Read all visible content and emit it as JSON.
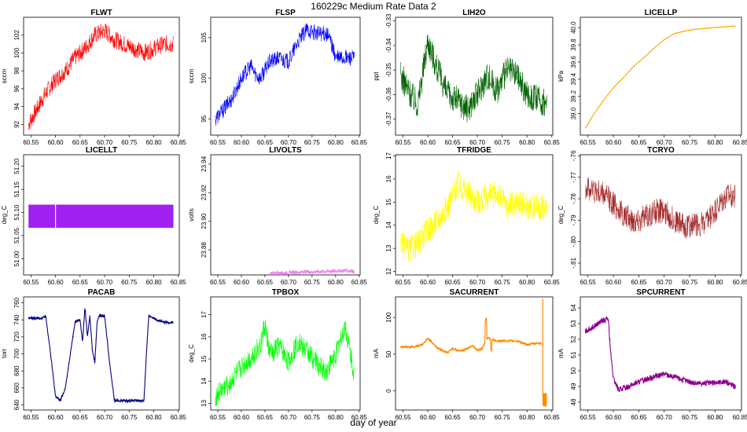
{
  "figure": {
    "title": "160229c   Medium Rate Data 2",
    "xlabel": "day of year"
  },
  "chart_data": [
    {
      "type": "line",
      "title": "FLWT",
      "ylabel": "sccm",
      "color": "#ff0000",
      "xlim": [
        60.535,
        60.852
      ],
      "ylim": [
        90.8,
        104.0
      ],
      "xticks": [
        "60.55",
        "60.60",
        "60.65",
        "60.70",
        "60.75",
        "60.80",
        "60.85"
      ],
      "yticks": [
        "92",
        "94",
        "96",
        "98",
        "100",
        "102"
      ],
      "x": [
        60.545,
        60.56,
        60.58,
        60.6,
        60.62,
        60.64,
        60.66,
        60.68,
        60.7,
        60.72,
        60.74,
        60.76,
        60.78,
        60.8,
        60.82,
        60.84
      ],
      "y": [
        92.0,
        93.5,
        95.5,
        97.0,
        98.0,
        99.5,
        100.5,
        102.0,
        102.5,
        101.5,
        101.0,
        100.5,
        100.0,
        100.5,
        101.0,
        101.0
      ],
      "noise": 2.0
    },
    {
      "type": "line",
      "title": "FLSP",
      "ylabel": "sccm",
      "color": "#0000ff",
      "xlim": [
        60.535,
        60.852
      ],
      "ylim": [
        93.0,
        107.5
      ],
      "xticks": [
        "60.55",
        "60.60",
        "60.65",
        "60.70",
        "60.75",
        "60.80",
        "60.85"
      ],
      "yticks": [
        "95",
        "100",
        "105"
      ],
      "x": [
        60.545,
        60.56,
        60.58,
        60.6,
        60.62,
        60.63,
        60.64,
        60.66,
        60.68,
        60.7,
        60.72,
        60.74,
        60.76,
        60.78,
        60.79,
        60.8,
        60.82,
        60.84
      ],
      "y": [
        95.0,
        96.0,
        97.5,
        100.0,
        101.5,
        100.5,
        100.0,
        102.0,
        102.5,
        102.0,
        104.5,
        106.0,
        105.5,
        105.5,
        104.5,
        102.5,
        102.5,
        102.5
      ],
      "noise": 2.0
    },
    {
      "type": "line",
      "title": "LIH2O",
      "ylabel": "ppt",
      "color": "#006400",
      "xlim": [
        60.535,
        60.852
      ],
      "ylim": [
        -0.3765,
        -0.3285
      ],
      "xticks": [
        "60.55",
        "60.60",
        "60.65",
        "60.70",
        "60.75",
        "60.80",
        "60.85"
      ],
      "yticks": [
        "-0.37",
        "-0.36",
        "-0.35",
        "-0.34",
        "-0.33"
      ],
      "x": [
        60.545,
        60.56,
        60.58,
        60.6,
        60.62,
        60.64,
        60.66,
        60.68,
        60.7,
        60.72,
        60.74,
        60.76,
        60.78,
        60.8,
        60.82,
        60.84
      ],
      "y": [
        -0.352,
        -0.358,
        -0.364,
        -0.338,
        -0.35,
        -0.36,
        -0.362,
        -0.366,
        -0.36,
        -0.352,
        -0.358,
        -0.35,
        -0.352,
        -0.36,
        -0.362,
        -0.364
      ],
      "noise": 0.012
    },
    {
      "type": "line",
      "title": "LICELLP",
      "ylabel": "kPa",
      "color": "#ffa500",
      "xlim": [
        60.535,
        60.852
      ],
      "ylim": [
        38.75,
        40.12
      ],
      "xticks": [
        "60.55",
        "60.60",
        "60.65",
        "60.70",
        "60.75",
        "60.80",
        "60.85"
      ],
      "yticks": [
        "39.0",
        "39.2",
        "39.4",
        "39.6",
        "39.8",
        "40.0"
      ],
      "x": [
        60.545,
        60.56,
        60.58,
        60.6,
        60.62,
        60.64,
        60.66,
        60.68,
        60.7,
        60.72,
        60.74,
        60.76,
        60.78,
        60.8,
        60.82,
        60.84
      ],
      "y": [
        38.83,
        38.98,
        39.15,
        39.3,
        39.42,
        39.55,
        39.65,
        39.76,
        39.86,
        39.93,
        39.96,
        39.98,
        39.99,
        40.0,
        40.01,
        40.02
      ],
      "noise": 0.004
    },
    {
      "type": "line",
      "title": "LICELLT",
      "ylabel": "deg_C",
      "color": "#a020f0",
      "xlim": [
        60.535,
        60.852
      ],
      "ylim": [
        50.965,
        51.225
      ],
      "xticks": [
        "60.55",
        "60.60",
        "60.65",
        "60.70",
        "60.75",
        "60.80",
        "60.85"
      ],
      "yticks": [
        "51.00",
        "51.05",
        "51.10",
        "51.15",
        "51.20"
      ],
      "x": [
        60.545,
        60.84
      ],
      "y": [
        51.092,
        51.092
      ],
      "band": [
        51.067,
        51.117
      ],
      "gap": 60.6,
      "noise": 0.0
    },
    {
      "type": "line",
      "title": "LIVOLTS",
      "ylabel": "volts",
      "color": "#ee82ee",
      "xlim": [
        60.535,
        60.852
      ],
      "ylim": [
        23.8625,
        23.9465
      ],
      "xticks": [
        "60.55",
        "60.60",
        "60.65",
        "60.70",
        "60.75",
        "60.80",
        "60.85"
      ],
      "yticks": [
        "23.86",
        "23.88",
        "23.90",
        "23.92",
        "23.94"
      ],
      "x": [
        60.66,
        60.7,
        60.74,
        60.78,
        60.82,
        60.84
      ],
      "y": [
        23.8635,
        23.864,
        23.8645,
        23.865,
        23.8655,
        23.865
      ],
      "noise": 0.0025
    },
    {
      "type": "line",
      "title": "TFRIDGE",
      "ylabel": "deg_C",
      "color": "#ffff00",
      "xlim": [
        60.535,
        60.852
      ],
      "ylim": [
        11.85,
        17.05
      ],
      "xticks": [
        "60.55",
        "60.60",
        "60.65",
        "60.70",
        "60.75",
        "60.80",
        "60.85"
      ],
      "yticks": [
        "12",
        "13",
        "14",
        "15",
        "16",
        "17"
      ],
      "x": [
        60.545,
        60.56,
        60.58,
        60.6,
        60.62,
        60.64,
        60.66,
        60.68,
        60.7,
        60.72,
        60.74,
        60.76,
        60.78,
        60.8,
        60.82,
        60.84
      ],
      "y": [
        13.2,
        12.9,
        13.2,
        13.8,
        14.2,
        14.8,
        15.8,
        15.4,
        15.0,
        15.2,
        15.4,
        14.8,
        15.0,
        14.8,
        14.8,
        14.8
      ],
      "noise": 1.2
    },
    {
      "type": "line",
      "title": "TCRYO",
      "ylabel": "deg_C",
      "color": "#a52a2a",
      "xlim": [
        60.535,
        60.852
      ],
      "ylim": [
        -0.8155,
        -0.7595
      ],
      "xticks": [
        "60.55",
        "60.60",
        "60.65",
        "60.70",
        "60.75",
        "60.80",
        "60.85"
      ],
      "yticks": [
        "-.81",
        "-.80",
        "-.79",
        "-.78",
        "-.77",
        "-.76"
      ],
      "x": [
        60.545,
        60.56,
        60.58,
        60.6,
        60.62,
        60.64,
        60.66,
        60.68,
        60.7,
        60.72,
        60.74,
        60.76,
        60.78,
        60.8,
        60.82,
        60.84
      ],
      "y": [
        -0.775,
        -0.776,
        -0.778,
        -0.782,
        -0.788,
        -0.79,
        -0.789,
        -0.786,
        -0.786,
        -0.79,
        -0.793,
        -0.792,
        -0.792,
        -0.786,
        -0.78,
        -0.778
      ],
      "noise": 0.012
    },
    {
      "type": "line",
      "title": "PACAB",
      "ylabel": "torr",
      "color": "#000080",
      "xlim": [
        60.535,
        60.852
      ],
      "ylim": [
        634,
        767
      ],
      "xticks": [
        "60.55",
        "60.60",
        "60.65",
        "60.70",
        "60.75",
        "60.80",
        "60.85"
      ],
      "yticks": [
        "640",
        "660",
        "680",
        "700",
        "720",
        "740",
        "760"
      ],
      "x": [
        60.545,
        60.57,
        60.58,
        60.59,
        60.6,
        60.61,
        60.62,
        60.63,
        60.64,
        60.65,
        60.655,
        60.66,
        60.665,
        60.67,
        60.675,
        60.68,
        60.685,
        60.69,
        60.7,
        60.71,
        60.72,
        60.73,
        60.76,
        60.78,
        60.785,
        60.79,
        60.8,
        60.82,
        60.84
      ],
      "y": [
        742,
        742,
        744,
        700,
        650,
        645,
        660,
        700,
        738,
        740,
        715,
        755,
        720,
        745,
        705,
        690,
        740,
        745,
        745,
        690,
        645,
        645,
        645,
        645,
        700,
        745,
        742,
        737,
        737
      ],
      "noise": 3
    },
    {
      "type": "line",
      "title": "TPBOX",
      "ylabel": "deg_C",
      "color": "#00ff00",
      "xlim": [
        60.535,
        60.852
      ],
      "ylim": [
        12.7,
        17.8
      ],
      "xticks": [
        "60.55",
        "60.60",
        "60.65",
        "60.70",
        "60.75",
        "60.80",
        "60.85"
      ],
      "yticks": [
        "13",
        "14",
        "15",
        "16",
        "17"
      ],
      "x": [
        60.545,
        60.56,
        60.58,
        60.6,
        60.62,
        60.64,
        60.65,
        60.66,
        60.68,
        60.7,
        60.72,
        60.74,
        60.76,
        60.78,
        60.8,
        60.82,
        60.84
      ],
      "y": [
        13.3,
        13.6,
        14.0,
        14.6,
        15.0,
        15.6,
        16.5,
        15.2,
        15.6,
        14.8,
        15.8,
        15.3,
        14.8,
        14.4,
        15.2,
        16.5,
        14.2
      ],
      "noise": 1.0
    },
    {
      "type": "line",
      "title": "SACURRENT",
      "ylabel": "mA",
      "color": "#ff8c00",
      "xlim": [
        60.535,
        60.852
      ],
      "ylim": [
        -26,
        128
      ],
      "xticks": [
        "60.55",
        "60.60",
        "60.65",
        "60.70",
        "60.75",
        "60.80",
        "60.85"
      ],
      "yticks": [
        "0",
        "50",
        "100"
      ],
      "x": [
        60.545,
        60.57,
        60.59,
        60.6,
        60.61,
        60.62,
        60.63,
        60.64,
        60.65,
        60.66,
        60.67,
        60.68,
        60.69,
        60.7,
        60.71,
        60.72,
        60.74,
        60.76,
        60.78,
        60.8,
        60.82,
        60.83
      ],
      "y": [
        60,
        60,
        63,
        72,
        65,
        58,
        55,
        52,
        58,
        55,
        55,
        58,
        62,
        55,
        58,
        72,
        68,
        68,
        68,
        63,
        65,
        65
      ],
      "noise": 3
    },
    {
      "type": "line",
      "title": "SPCURRENT",
      "ylabel": "mA",
      "color": "#8b008b",
      "xlim": [
        60.535,
        60.852
      ],
      "ylim": [
        47.5,
        54.7
      ],
      "xticks": [
        "60.55",
        "60.60",
        "60.65",
        "60.70",
        "60.75",
        "60.80",
        "60.85"
      ],
      "yticks": [
        "48",
        "49",
        "50",
        "51",
        "52",
        "53",
        "54"
      ],
      "x": [
        60.545,
        60.56,
        60.58,
        60.59,
        60.595,
        60.6,
        60.61,
        60.63,
        60.65,
        60.67,
        60.7,
        60.73,
        60.76,
        60.79,
        60.82,
        60.84
      ],
      "y": [
        52.5,
        52.8,
        53.2,
        53.3,
        51.0,
        49.5,
        48.8,
        49.0,
        49.3,
        49.5,
        49.8,
        49.5,
        49.2,
        49.2,
        49.3,
        49.0
      ],
      "noise": 0.35
    }
  ]
}
